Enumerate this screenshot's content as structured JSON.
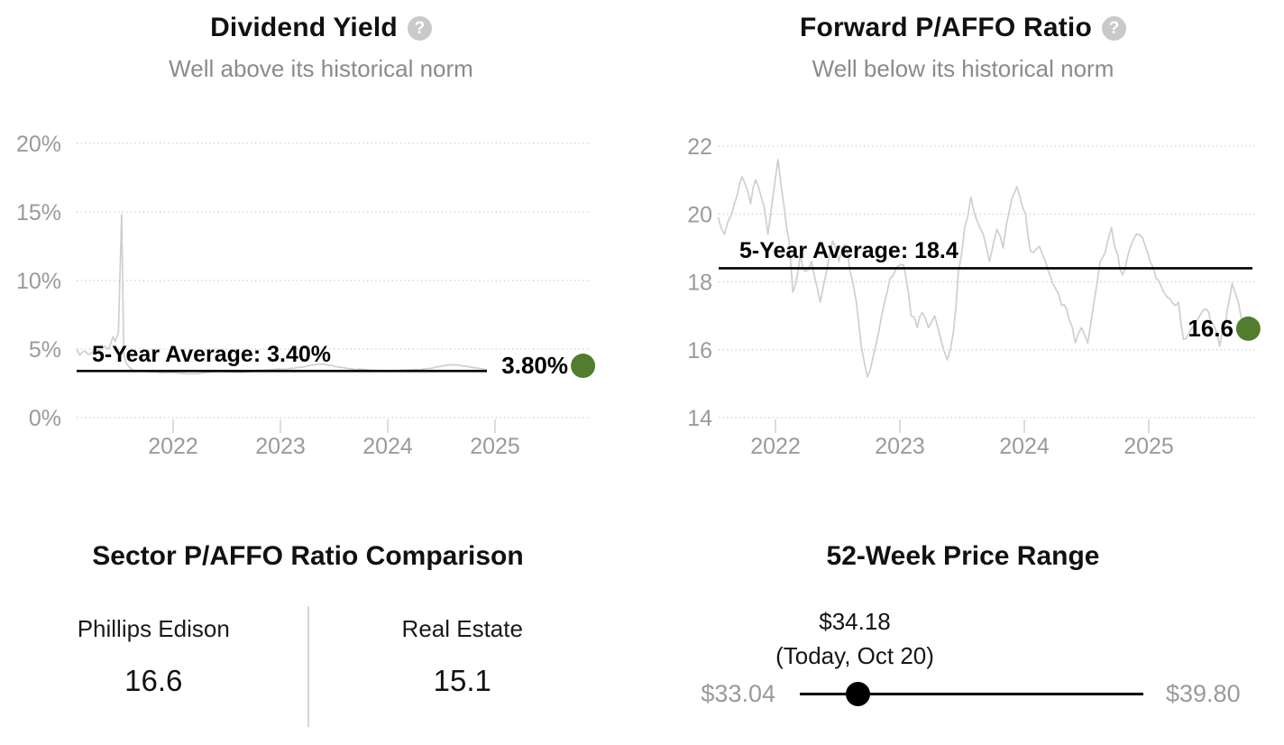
{
  "icons": {
    "help_glyph": "?"
  },
  "colors": {
    "accent_green": "#537d2e",
    "series_gray": "#cfcfcf",
    "grid_gray": "#d4d4d4",
    "axis_gray": "#9a9a9a",
    "average_black": "#000000",
    "subtitle_gray": "#8b8b8b",
    "divider_gray": "#d6d6d6"
  },
  "sector": {
    "title": "Sector P/AFFO Ratio Comparison",
    "items": [
      {
        "label": "Phillips Edison",
        "value": "16.6"
      },
      {
        "label": "Real Estate",
        "value": "15.1"
      }
    ]
  },
  "range": {
    "title": "52-Week Price Range",
    "current_price": "$34.18",
    "current_date": "(Today, Oct 20)",
    "min": "$33.04",
    "max": "$39.80",
    "min_value": 33.04,
    "max_value": 39.8,
    "current_value": 34.18
  },
  "chart_data": [
    {
      "type": "line",
      "title": "Dividend Yield",
      "subtitle": "Well above its historical norm",
      "ylabel": "Dividend Yield (%)",
      "y_ticks": [
        "20%",
        "15%",
        "10%",
        "5%",
        "0%"
      ],
      "y_tick_values": [
        20,
        15,
        10,
        5,
        0
      ],
      "x_ticks": [
        2022,
        2023,
        2024,
        2025
      ],
      "xlim": [
        2021.1,
        2025.85
      ],
      "ylim": [
        0,
        20
      ],
      "grid": "dotted",
      "average_value": 3.4,
      "average_label": "5-Year Average: 3.40%",
      "current_label": "3.80%",
      "current_point": [
        2025.82,
        3.78
      ],
      "series": [
        [
          2021.1,
          5.0
        ],
        [
          2021.13,
          4.55
        ],
        [
          2021.17,
          4.85
        ],
        [
          2021.21,
          4.6
        ],
        [
          2021.26,
          4.75
        ],
        [
          2021.31,
          4.9
        ],
        [
          2021.36,
          5.2
        ],
        [
          2021.4,
          5.0
        ],
        [
          2021.44,
          5.9
        ],
        [
          2021.46,
          5.55
        ],
        [
          2021.49,
          6.2
        ],
        [
          2021.52,
          14.8
        ],
        [
          2021.54,
          4.6
        ],
        [
          2021.56,
          4.0
        ],
        [
          2021.59,
          3.7
        ],
        [
          2021.63,
          3.45
        ],
        [
          2021.7,
          3.4
        ],
        [
          2021.78,
          3.35
        ],
        [
          2021.88,
          3.25
        ],
        [
          2021.98,
          3.3
        ],
        [
          2022.1,
          3.25
        ],
        [
          2022.22,
          3.2
        ],
        [
          2022.35,
          3.3
        ],
        [
          2022.48,
          3.35
        ],
        [
          2022.6,
          3.3
        ],
        [
          2022.72,
          3.35
        ],
        [
          2022.85,
          3.45
        ],
        [
          2022.98,
          3.55
        ],
        [
          2023.1,
          3.6
        ],
        [
          2023.22,
          3.7
        ],
        [
          2023.32,
          3.85
        ],
        [
          2023.4,
          3.9
        ],
        [
          2023.48,
          3.8
        ],
        [
          2023.58,
          3.65
        ],
        [
          2023.7,
          3.5
        ],
        [
          2023.85,
          3.45
        ],
        [
          2024.0,
          3.4
        ],
        [
          2024.15,
          3.45
        ],
        [
          2024.3,
          3.5
        ],
        [
          2024.45,
          3.7
        ],
        [
          2024.58,
          3.85
        ],
        [
          2024.7,
          3.75
        ],
        [
          2024.85,
          3.6
        ],
        [
          2025.0,
          3.5
        ],
        [
          2025.15,
          3.4
        ],
        [
          2025.3,
          3.35
        ],
        [
          2025.45,
          3.4
        ],
        [
          2025.58,
          3.35
        ],
        [
          2025.68,
          3.45
        ],
        [
          2025.76,
          3.55
        ],
        [
          2025.82,
          3.78
        ]
      ]
    },
    {
      "type": "line",
      "title": "Forward P/AFFO Ratio",
      "subtitle": "Well below its historical norm",
      "ylabel": "Forward P/AFFO Ratio",
      "y_ticks": [
        "22",
        "20",
        "18",
        "16",
        "14"
      ],
      "y_tick_values": [
        22,
        20,
        18,
        16,
        14
      ],
      "x_ticks": [
        2022,
        2023,
        2024,
        2025
      ],
      "xlim": [
        2021.54,
        2025.8
      ],
      "ylim": [
        14,
        22
      ],
      "grid": "dotted",
      "average_value": 18.4,
      "average_label": "5-Year Average: 18.4",
      "current_label": "16.6",
      "current_point": [
        2025.8,
        16.62
      ],
      "series": [
        [
          2021.54,
          19.9
        ],
        [
          2021.59,
          19.4
        ],
        [
          2021.62,
          19.8
        ],
        [
          2021.67,
          20.3
        ],
        [
          2021.73,
          21.1
        ],
        [
          2021.8,
          20.3
        ],
        [
          2021.84,
          21.0
        ],
        [
          2021.91,
          20.2
        ],
        [
          2021.94,
          19.4
        ],
        [
          2021.98,
          20.5
        ],
        [
          2022.02,
          21.6
        ],
        [
          2022.07,
          20.2
        ],
        [
          2022.11,
          19.2
        ],
        [
          2022.14,
          17.7
        ],
        [
          2022.2,
          18.8
        ],
        [
          2022.24,
          18.3
        ],
        [
          2022.29,
          18.6
        ],
        [
          2022.36,
          17.4
        ],
        [
          2022.41,
          18.3
        ],
        [
          2022.46,
          19.2
        ],
        [
          2022.51,
          18.6
        ],
        [
          2022.56,
          19.1
        ],
        [
          2022.6,
          18.3
        ],
        [
          2022.65,
          17.4
        ],
        [
          2022.69,
          16.1
        ],
        [
          2022.74,
          15.2
        ],
        [
          2022.78,
          15.7
        ],
        [
          2022.81,
          16.2
        ],
        [
          2022.87,
          17.3
        ],
        [
          2022.92,
          18.1
        ],
        [
          2022.98,
          18.45
        ],
        [
          2023.03,
          18.5
        ],
        [
          2023.09,
          17.0
        ],
        [
          2023.14,
          16.65
        ],
        [
          2023.18,
          17.1
        ],
        [
          2023.23,
          16.65
        ],
        [
          2023.28,
          17.0
        ],
        [
          2023.33,
          16.3
        ],
        [
          2023.38,
          15.7
        ],
        [
          2023.43,
          16.5
        ],
        [
          2023.47,
          18.3
        ],
        [
          2023.52,
          19.6
        ],
        [
          2023.57,
          20.5
        ],
        [
          2023.62,
          19.8
        ],
        [
          2023.67,
          19.4
        ],
        [
          2023.72,
          18.6
        ],
        [
          2023.78,
          19.55
        ],
        [
          2023.83,
          19.0
        ],
        [
          2023.88,
          20.1
        ],
        [
          2023.94,
          20.8
        ],
        [
          2024.01,
          20.0
        ],
        [
          2024.05,
          18.9
        ],
        [
          2024.12,
          19.05
        ],
        [
          2024.17,
          18.6
        ],
        [
          2024.23,
          17.95
        ],
        [
          2024.3,
          17.3
        ],
        [
          2024.36,
          16.9
        ],
        [
          2024.41,
          16.2
        ],
        [
          2024.46,
          16.65
        ],
        [
          2024.51,
          16.2
        ],
        [
          2024.56,
          17.4
        ],
        [
          2024.61,
          18.6
        ],
        [
          2024.67,
          19.2
        ],
        [
          2024.7,
          19.6
        ],
        [
          2024.75,
          18.8
        ],
        [
          2024.79,
          18.2
        ],
        [
          2024.85,
          19.0
        ],
        [
          2024.9,
          19.4
        ],
        [
          2024.95,
          19.3
        ],
        [
          2025.01,
          18.6
        ],
        [
          2025.06,
          18.1
        ],
        [
          2025.12,
          17.7
        ],
        [
          2025.17,
          17.5
        ],
        [
          2025.24,
          17.4
        ],
        [
          2025.28,
          16.3
        ],
        [
          2025.35,
          16.65
        ],
        [
          2025.41,
          17.0
        ],
        [
          2025.46,
          17.2
        ],
        [
          2025.5,
          16.8
        ],
        [
          2025.57,
          16.1
        ],
        [
          2025.61,
          16.65
        ],
        [
          2025.67,
          17.95
        ],
        [
          2025.72,
          17.4
        ],
        [
          2025.75,
          16.8
        ],
        [
          2025.8,
          16.62
        ]
      ]
    }
  ]
}
